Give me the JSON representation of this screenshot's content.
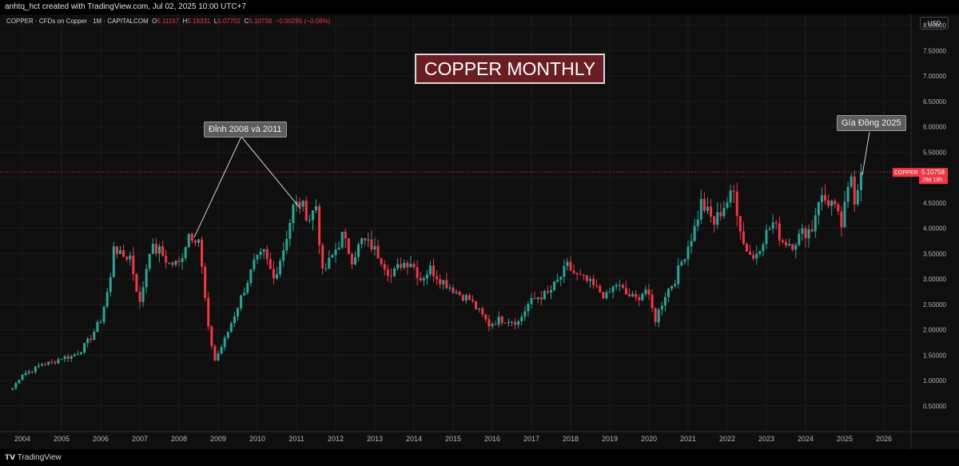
{
  "header": {
    "text": "anhtq_hct created with TradingView.com, Jul 02, 2025 10:00 UTC+7"
  },
  "legend": {
    "symbol_line": "COPPER · CFDs on Copper · 1M · CAPITALCOM",
    "o_label": "O",
    "o": "5.11157",
    "h_label": "H",
    "h": "5.19331",
    "l_label": "L",
    "l": "5.07702",
    "c_label": "C",
    "c": "5.10758",
    "chg": "−0.00295 (−0.06%)"
  },
  "currency_button": "USD",
  "footer": {
    "logo": "TradingView"
  },
  "annotations": {
    "title": "COPPER MONTHLY",
    "peaks_label": "Đỉnh 2008 và 2011",
    "price2025_label": "Gía Đồng 2025"
  },
  "price_tag": {
    "symbol": "COPPER",
    "price": "5.10758",
    "countdown": "29d 18h"
  },
  "colors": {
    "up": "#26a69a",
    "down": "#f23645",
    "background": "#0f0f0f",
    "grid": "#1c1c1c",
    "axis_text": "#b2b5be"
  },
  "chart_data": {
    "type": "candlestick",
    "title": "COPPER MONTHLY",
    "interval": "1M",
    "x_ticks": [
      "2004",
      "2005",
      "2006",
      "2007",
      "2008",
      "2009",
      "2010",
      "2011",
      "2012",
      "2013",
      "2014",
      "2015",
      "2016",
      "2017",
      "2018",
      "2019",
      "2020",
      "2021",
      "2022",
      "2023",
      "2024",
      "2025",
      "2026"
    ],
    "y_ticks": [
      "0.50000",
      "1.00000",
      "1.50000",
      "2.00000",
      "2.50000",
      "3.00000",
      "3.50000",
      "4.00000",
      "4.50000",
      "5.00000",
      "5.50000",
      "6.00000",
      "6.50000",
      "7.00000",
      "7.50000",
      "8.00000"
    ],
    "ylim": [
      0.2,
      8.1
    ],
    "last_price": 5.10758,
    "series_closes": [
      {
        "x": "2003-10",
        "close": 0.85
      },
      {
        "x": "2004-01",
        "close": 1.13
      },
      {
        "x": "2004-04",
        "close": 1.2
      },
      {
        "x": "2004-07",
        "close": 1.33
      },
      {
        "x": "2004-10",
        "close": 1.35
      },
      {
        "x": "2005-01",
        "close": 1.45
      },
      {
        "x": "2005-04",
        "close": 1.47
      },
      {
        "x": "2005-07",
        "close": 1.6
      },
      {
        "x": "2005-10",
        "close": 1.85
      },
      {
        "x": "2006-01",
        "close": 2.2
      },
      {
        "x": "2006-04",
        "close": 3.0
      },
      {
        "x": "2006-05",
        "close": 3.7
      },
      {
        "x": "2006-07",
        "close": 3.45
      },
      {
        "x": "2006-10",
        "close": 3.45
      },
      {
        "x": "2007-01",
        "close": 2.5
      },
      {
        "x": "2007-04",
        "close": 3.6
      },
      {
        "x": "2007-07",
        "close": 3.55
      },
      {
        "x": "2007-10",
        "close": 3.3
      },
      {
        "x": "2008-01",
        "close": 3.3
      },
      {
        "x": "2008-04",
        "close": 3.9
      },
      {
        "x": "2008-07",
        "close": 3.8
      },
      {
        "x": "2008-10",
        "close": 2.0
      },
      {
        "x": "2008-12",
        "close": 1.4
      },
      {
        "x": "2009-03",
        "close": 1.8
      },
      {
        "x": "2009-06",
        "close": 2.3
      },
      {
        "x": "2009-09",
        "close": 2.8
      },
      {
        "x": "2009-12",
        "close": 3.3
      },
      {
        "x": "2010-03",
        "close": 3.5
      },
      {
        "x": "2010-06",
        "close": 3.0
      },
      {
        "x": "2010-09",
        "close": 3.6
      },
      {
        "x": "2010-12",
        "close": 4.4
      },
      {
        "x": "2011-02",
        "close": 4.5
      },
      {
        "x": "2011-05",
        "close": 4.2
      },
      {
        "x": "2011-07",
        "close": 4.45
      },
      {
        "x": "2011-09",
        "close": 3.1
      },
      {
        "x": "2011-12",
        "close": 3.45
      },
      {
        "x": "2012-03",
        "close": 3.85
      },
      {
        "x": "2012-06",
        "close": 3.4
      },
      {
        "x": "2012-09",
        "close": 3.75
      },
      {
        "x": "2012-12",
        "close": 3.65
      },
      {
        "x": "2013-03",
        "close": 3.4
      },
      {
        "x": "2013-06",
        "close": 3.05
      },
      {
        "x": "2013-09",
        "close": 3.3
      },
      {
        "x": "2013-12",
        "close": 3.35
      },
      {
        "x": "2014-03",
        "close": 3.0
      },
      {
        "x": "2014-06",
        "close": 3.2
      },
      {
        "x": "2014-09",
        "close": 3.0
      },
      {
        "x": "2014-12",
        "close": 2.85
      },
      {
        "x": "2015-03",
        "close": 2.7
      },
      {
        "x": "2015-06",
        "close": 2.6
      },
      {
        "x": "2015-09",
        "close": 2.35
      },
      {
        "x": "2015-12",
        "close": 2.1
      },
      {
        "x": "2016-03",
        "close": 2.2
      },
      {
        "x": "2016-06",
        "close": 2.2
      },
      {
        "x": "2016-09",
        "close": 2.15
      },
      {
        "x": "2016-12",
        "close": 2.5
      },
      {
        "x": "2017-03",
        "close": 2.65
      },
      {
        "x": "2017-06",
        "close": 2.7
      },
      {
        "x": "2017-09",
        "close": 2.95
      },
      {
        "x": "2017-12",
        "close": 3.25
      },
      {
        "x": "2018-03",
        "close": 3.05
      },
      {
        "x": "2018-06",
        "close": 2.95
      },
      {
        "x": "2018-09",
        "close": 2.8
      },
      {
        "x": "2018-12",
        "close": 2.65
      },
      {
        "x": "2019-03",
        "close": 2.9
      },
      {
        "x": "2019-06",
        "close": 2.7
      },
      {
        "x": "2019-09",
        "close": 2.6
      },
      {
        "x": "2019-12",
        "close": 2.8
      },
      {
        "x": "2020-03",
        "close": 2.2
      },
      {
        "x": "2020-06",
        "close": 2.7
      },
      {
        "x": "2020-09",
        "close": 3.0
      },
      {
        "x": "2020-12",
        "close": 3.5
      },
      {
        "x": "2021-03",
        "close": 4.0
      },
      {
        "x": "2021-05",
        "close": 4.5
      },
      {
        "x": "2021-09",
        "close": 4.1
      },
      {
        "x": "2021-12",
        "close": 4.45
      },
      {
        "x": "2022-03",
        "close": 4.7
      },
      {
        "x": "2022-06",
        "close": 3.7
      },
      {
        "x": "2022-09",
        "close": 3.4
      },
      {
        "x": "2022-12",
        "close": 3.8
      },
      {
        "x": "2023-03",
        "close": 4.1
      },
      {
        "x": "2023-06",
        "close": 3.75
      },
      {
        "x": "2023-09",
        "close": 3.7
      },
      {
        "x": "2023-12",
        "close": 3.9
      },
      {
        "x": "2024-03",
        "close": 4.0
      },
      {
        "x": "2024-05",
        "close": 4.6
      },
      {
        "x": "2024-09",
        "close": 4.5
      },
      {
        "x": "2024-12",
        "close": 4.05
      },
      {
        "x": "2025-03",
        "close": 5.05
      },
      {
        "x": "2025-04",
        "close": 4.6
      },
      {
        "x": "2025-06",
        "close": 5.1
      }
    ]
  }
}
